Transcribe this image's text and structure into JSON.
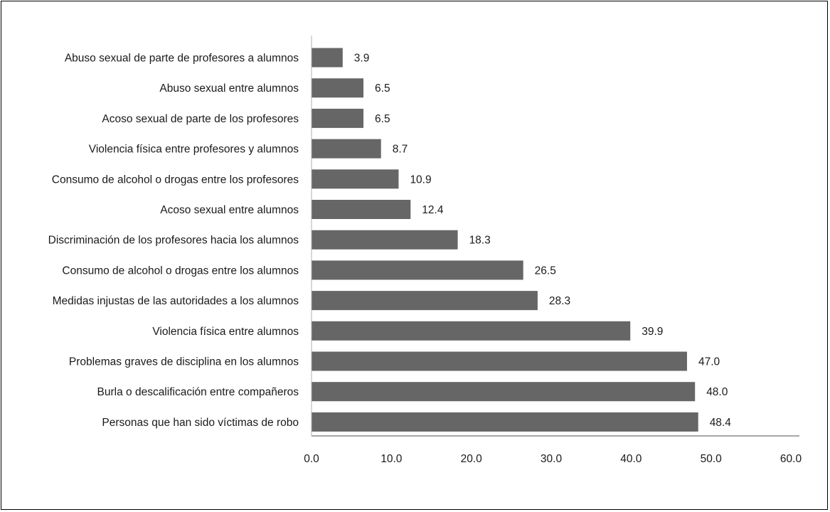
{
  "chart_data": {
    "type": "bar",
    "orientation": "horizontal",
    "title": "",
    "xlabel": "",
    "ylabel": "",
    "categories": [
      "Abuso sexual de parte de profesores a alumnos",
      "Abuso sexual entre alumnos",
      "Acoso sexual de parte de los profesores",
      "Violencia física entre profesores y alumnos",
      "Consumo de alcohol o drogas entre los profesores",
      "Acoso sexual entre alumnos",
      "Discriminación de los profesores hacia los alumnos",
      "Consumo de alcohol o drogas entre los alumnos",
      "Medidas injustas de las autoridades a los alumnos",
      "Violencia física entre alumnos",
      "Problemas graves de disciplina en los alumnos",
      "Burla o descalificación entre compañeros",
      "Personas que han sido víctimas de robo"
    ],
    "values": [
      3.9,
      6.5,
      6.5,
      8.7,
      10.9,
      12.4,
      18.3,
      26.5,
      28.3,
      39.9,
      47.0,
      48.0,
      48.4
    ],
    "value_labels": [
      "3.9",
      "6.5",
      "6.5",
      "8.7",
      "10.9",
      "12.4",
      "18.3",
      "26.5",
      "28.3",
      "39.9",
      "47.0",
      "48.0",
      "48.4"
    ],
    "xlim": [
      0,
      60
    ],
    "xticks": [
      0,
      10,
      20,
      30,
      40,
      50,
      60
    ],
    "xtick_labels": [
      "0.0",
      "10.0",
      "20.0",
      "30.0",
      "40.0",
      "50.0",
      "60.0"
    ],
    "grid": false,
    "legend": "none",
    "bar_color": "#666666"
  }
}
